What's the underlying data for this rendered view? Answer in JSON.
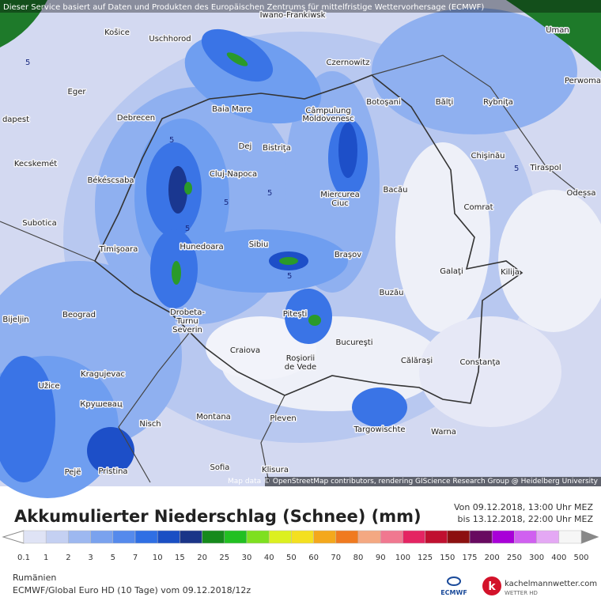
{
  "banner": "Dieser Service basiert auf Daten und Produkten des Europäischen Zentrums für mittelfristige Wettervorhersage (ECMWF)",
  "attribution": "Map data © OpenStreetMap contributors, rendering GIScience Research Group @ Heidelberg University",
  "cities": [
    "Košice",
    "Uschhorod",
    "Iwano-Frankiwsk",
    "Uman",
    "Czernowitz",
    "Perwoma",
    "Eger",
    "Botoşani",
    "Bălţi",
    "Rybniţa",
    "Baia Mare",
    "Câmpulung",
    "Moldovenesc",
    "dapest",
    "Debrecen",
    "Dej",
    "Bistriţa",
    "Chişinău",
    "Kecskemét",
    "Cluj-Napoca",
    "Tiraspol",
    "Békéscsaba",
    "Miercurea",
    "Ciuc",
    "Bacău",
    "Odessa",
    "Comrat",
    "Subotica",
    "Sibiu",
    "Hunedoara",
    "Timişoara",
    "Braşov",
    "Galaţi",
    "Kilija",
    "Buzău",
    "Beograd",
    "Piteşti",
    "Drobeta-",
    "Turnu",
    "Severin",
    "Bijeljin",
    "Craiova",
    "Bucureşti",
    "Călăraşi",
    "Constanţa",
    "Roşiorii",
    "de Vede",
    "Kragujevac",
    "Užice",
    "Крушевац",
    "Montana",
    "Pleven",
    "Nisch",
    "Targowischte",
    "Warna",
    "Sofia",
    "Klisura",
    "Pejë",
    "Pristina"
  ],
  "contour_labels": [
    5,
    5,
    5,
    5,
    5,
    5,
    5
  ],
  "title": "Akkumulierter Niederschlag (Schnee) (mm)",
  "period_from": "Von 09.12.2018, 13:00 Uhr MEZ",
  "period_to": "bis 13.12.2018, 22:00 Uhr MEZ",
  "legend": {
    "values": [
      0.1,
      1,
      2,
      3,
      5,
      7,
      10,
      15,
      20,
      25,
      30,
      40,
      50,
      60,
      70,
      80,
      90,
      100,
      125,
      150,
      175,
      200,
      250,
      300,
      400,
      500
    ],
    "colors": [
      "#dfe3f5",
      "#c4d0f2",
      "#9db8f0",
      "#7aa2ee",
      "#558aec",
      "#2f6fe4",
      "#1a4fc4",
      "#1a3588",
      "#168a1c",
      "#22c022",
      "#7ee020",
      "#dcf020",
      "#f4e020",
      "#f4a81c",
      "#f07a20",
      "#f4a882",
      "#f07890",
      "#e42462",
      "#c01030",
      "#8c1010",
      "#680a60",
      "#a800d8",
      "#d060f0",
      "#e4a8f4",
      "#f6f6f6"
    ]
  },
  "region": "Rumänien",
  "model": "ECMWF/Global Euro HD (10 Tage) vom 09.12.2018/12z",
  "logo_ecmwf": "ECMWF",
  "logo_site": "kachelmannwetter.com",
  "logo_sub": "WETTER HD"
}
